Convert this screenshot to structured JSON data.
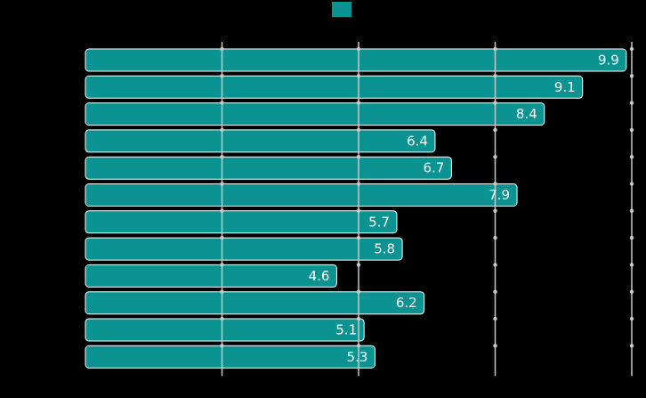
{
  "chart_data": {
    "type": "bar",
    "orientation": "horizontal",
    "categories": [
      "",
      "",
      "",
      "",
      "",
      "",
      "",
      "",
      "",
      "",
      "",
      ""
    ],
    "series": [
      {
        "values": [
          9.9,
          9.1,
          8.4,
          6.4,
          6.7,
          7.9,
          5.7,
          5.8,
          4.6,
          6.2,
          5.1,
          5.3
        ]
      }
    ],
    "labels": [
      "9.9",
      "9.1",
      "8.4",
      "6.4",
      "6.7",
      "7.9",
      "5.7",
      "5.8",
      "4.6",
      "6.2",
      "5.1",
      "5.3"
    ],
    "title": "",
    "xlabel": "",
    "ylabel": "",
    "xlim": [
      0,
      10
    ],
    "x_gridlines": [
      2.5,
      5,
      7.5,
      10
    ],
    "grid": true,
    "legend": "top-center",
    "colors": {
      "background": "#000000",
      "bar": "#0a9391",
      "bar_edge": "#ffffff",
      "grid": "#c8c8c8",
      "label": "#ffffff"
    }
  }
}
